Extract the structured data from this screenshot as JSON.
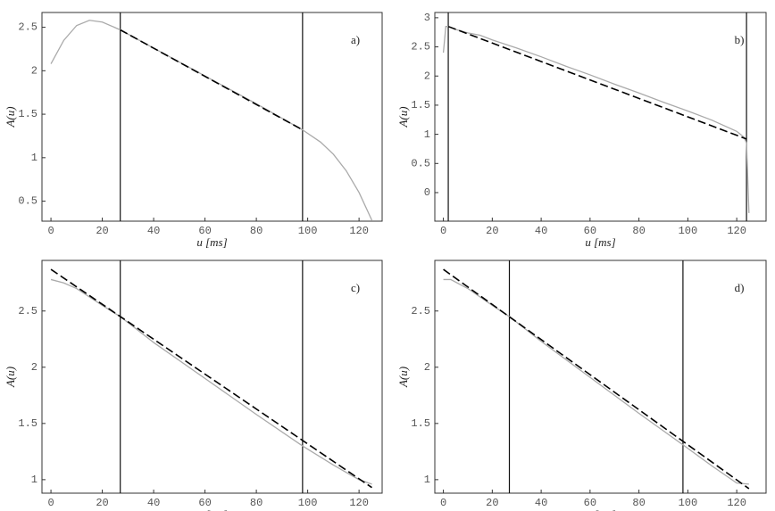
{
  "chart_data": [
    {
      "type": "line",
      "label": "a)",
      "xlabel": "u [ms]",
      "ylabel": "A(u)",
      "xlim": [
        -3.5,
        129
      ],
      "ylim": [
        0.27,
        2.67
      ],
      "xticks": [
        0,
        20,
        40,
        60,
        80,
        100,
        120
      ],
      "yticks": [
        0.5,
        1,
        1.5,
        2,
        2.5
      ],
      "vlines": [
        27,
        98
      ],
      "series": [
        {
          "color": "#aaaaaa",
          "dashed": false,
          "x": [
            0,
            5,
            10,
            15,
            20,
            27,
            40,
            60,
            80,
            98,
            105,
            110,
            115,
            120,
            125
          ],
          "values": [
            2.08,
            2.35,
            2.52,
            2.58,
            2.56,
            2.47,
            2.26,
            1.94,
            1.62,
            1.32,
            1.18,
            1.04,
            0.85,
            0.6,
            0.28
          ]
        },
        {
          "color": "#000000",
          "dashed": true,
          "x": [
            27,
            98
          ],
          "values": [
            2.47,
            1.32
          ]
        }
      ]
    },
    {
      "type": "line",
      "label": "b)",
      "xlabel": "u [ms]",
      "ylabel": "A(u)",
      "xlim": [
        -3.5,
        132
      ],
      "ylim": [
        -0.49,
        3.09
      ],
      "xticks": [
        0,
        20,
        40,
        60,
        80,
        100,
        120
      ],
      "yticks": [
        0,
        0.5,
        1,
        1.5,
        2,
        2.5,
        3
      ],
      "vlines": [
        2,
        124
      ],
      "series": [
        {
          "color": "#aaaaaa",
          "dashed": false,
          "x": [
            0,
            1,
            2,
            5,
            10,
            15,
            20,
            30,
            40,
            50,
            60,
            70,
            80,
            90,
            100,
            110,
            120,
            123,
            124,
            125
          ],
          "values": [
            2.4,
            2.85,
            2.85,
            2.8,
            2.74,
            2.7,
            2.62,
            2.48,
            2.33,
            2.17,
            2.02,
            1.86,
            1.71,
            1.55,
            1.4,
            1.24,
            1.05,
            0.95,
            0.85,
            -0.35
          ]
        },
        {
          "color": "#000000",
          "dashed": true,
          "x": [
            2,
            124
          ],
          "values": [
            2.85,
            0.92
          ]
        }
      ]
    },
    {
      "type": "line",
      "label": "c)",
      "xlabel": "u [ms]",
      "ylabel": "A(u)",
      "xlim": [
        -3.5,
        129
      ],
      "ylim": [
        0.88,
        2.95
      ],
      "xticks": [
        0,
        20,
        40,
        60,
        80,
        100,
        120
      ],
      "yticks": [
        1,
        1.5,
        2,
        2.5
      ],
      "vlines": [
        27,
        98
      ],
      "series": [
        {
          "color": "#aaaaaa",
          "dashed": false,
          "x": [
            0,
            5,
            10,
            20,
            27,
            40,
            60,
            80,
            98,
            110,
            120,
            125
          ],
          "values": [
            2.78,
            2.75,
            2.7,
            2.55,
            2.45,
            2.22,
            1.9,
            1.58,
            1.3,
            1.13,
            1.0,
            0.96
          ]
        },
        {
          "color": "#000000",
          "dashed": true,
          "x": [
            0,
            125
          ],
          "values": [
            2.87,
            0.93
          ]
        }
      ]
    },
    {
      "type": "line",
      "label": "d)",
      "xlabel": "u [ms]",
      "ylabel": "A(u)",
      "xlim": [
        -3.5,
        132
      ],
      "ylim": [
        0.88,
        2.95
      ],
      "xticks": [
        0,
        20,
        40,
        60,
        80,
        100,
        120
      ],
      "yticks": [
        1,
        1.5,
        2,
        2.5
      ],
      "vlines": [
        27,
        98
      ],
      "series": [
        {
          "color": "#aaaaaa",
          "dashed": false,
          "x": [
            0,
            3,
            10,
            20,
            27,
            40,
            60,
            80,
            98,
            110,
            120,
            125
          ],
          "values": [
            2.78,
            2.78,
            2.7,
            2.55,
            2.45,
            2.23,
            1.91,
            1.59,
            1.31,
            1.12,
            0.97,
            0.96
          ]
        },
        {
          "color": "#000000",
          "dashed": true,
          "x": [
            0,
            125
          ],
          "values": [
            2.87,
            0.92
          ]
        }
      ]
    }
  ]
}
